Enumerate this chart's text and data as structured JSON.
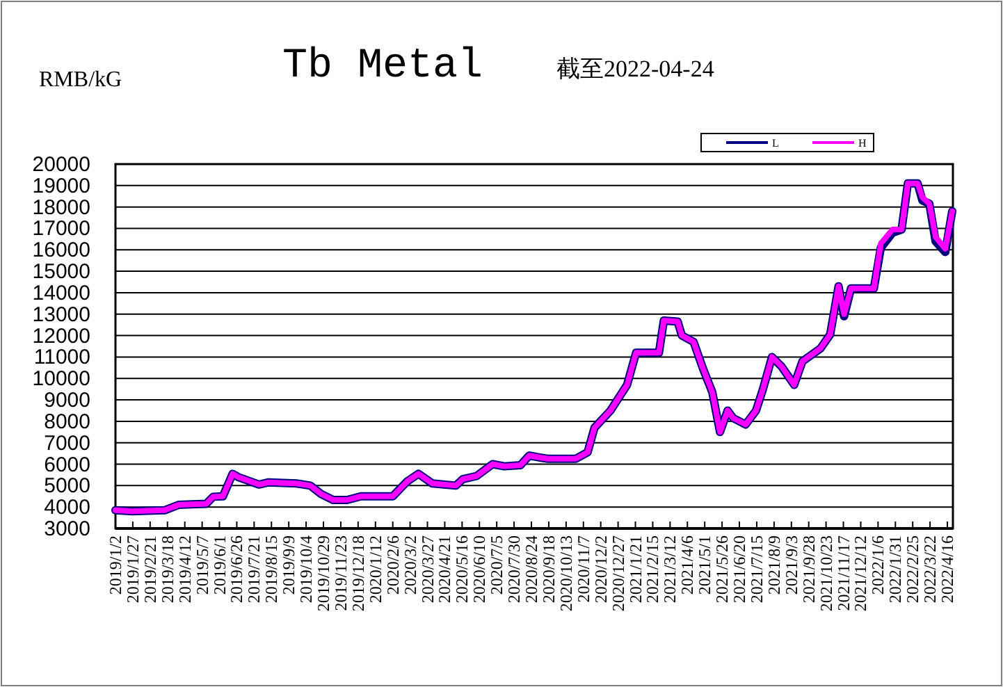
{
  "chart_data": {
    "type": "line",
    "title": "Tb Metal",
    "ylabel": "RMB/kG",
    "annotations": [
      "截至2022-04-24"
    ],
    "x": [
      "2019-01-02",
      "2019-01-26",
      "2019-03-14",
      "2019-04-03",
      "2019-05-13",
      "2019-05-23",
      "2019-06-06",
      "2019-06-20",
      "2019-06-28",
      "2019-07-28",
      "2019-08-11",
      "2019-09-20",
      "2019-10-10",
      "2019-10-26",
      "2019-11-12",
      "2019-12-02",
      "2019-12-22",
      "2020-02-06",
      "2020-02-27",
      "2020-03-14",
      "2020-04-03",
      "2020-05-07",
      "2020-05-17",
      "2020-06-06",
      "2020-06-29",
      "2020-07-16",
      "2020-08-08",
      "2020-08-21",
      "2020-09-07",
      "2020-09-17",
      "2020-10-27",
      "2020-11-13",
      "2020-11-23",
      "2020-12-16",
      "2021-01-09",
      "2021-01-22",
      "2021-02-24",
      "2021-03-03",
      "2021-03-23",
      "2021-03-29",
      "2021-04-15",
      "2021-04-28",
      "2021-05-12",
      "2021-05-23",
      "2021-06-03",
      "2021-06-11",
      "2021-06-29",
      "2021-07-14",
      "2021-07-24",
      "2021-08-06",
      "2021-08-20",
      "2021-09-07",
      "2021-09-19",
      "2021-10-15",
      "2021-10-29",
      "2021-11-10",
      "2021-11-18",
      "2021-11-28",
      "2021-12-31",
      "2022-01-10",
      "2022-01-27",
      "2022-02-09",
      "2022-02-18",
      "2022-03-04",
      "2022-03-11",
      "2022-03-21",
      "2022-03-30",
      "2022-04-13",
      "2022-04-23"
    ],
    "series": [
      {
        "name": "L",
        "color": "#000080",
        "values": [
          3850,
          3800,
          3850,
          4100,
          4150,
          4480,
          4500,
          5550,
          5400,
          5050,
          5150,
          5100,
          5000,
          4600,
          4330,
          4330,
          4500,
          4500,
          5200,
          5550,
          5100,
          5000,
          5300,
          5450,
          6000,
          5900,
          5950,
          6400,
          6300,
          6250,
          6250,
          6550,
          7700,
          8500,
          9700,
          11200,
          11200,
          12700,
          12650,
          12000,
          11700,
          10500,
          9350,
          7500,
          8500,
          8150,
          7850,
          8500,
          9500,
          11000,
          10550,
          9700,
          10800,
          11400,
          12050,
          14300,
          12900,
          14200,
          14200,
          16100,
          16800,
          16950,
          19100,
          19100,
          18300,
          18150,
          16400,
          15900,
          17800
        ]
      },
      {
        "name": "H",
        "color": "#ff00ff",
        "values": [
          3850,
          3800,
          3850,
          4100,
          4150,
          4480,
          4500,
          5550,
          5400,
          5050,
          5150,
          5100,
          5000,
          4600,
          4330,
          4330,
          4500,
          4500,
          5200,
          5550,
          5100,
          5000,
          5300,
          5450,
          6000,
          5900,
          5950,
          6400,
          6300,
          6250,
          6250,
          6550,
          7700,
          8500,
          9700,
          11200,
          11200,
          12700,
          12650,
          12000,
          11700,
          10500,
          9350,
          7500,
          8500,
          8150,
          7850,
          8500,
          9500,
          11000,
          10550,
          9700,
          10800,
          11400,
          12050,
          14300,
          13000,
          14200,
          14200,
          16300,
          16950,
          16950,
          19100,
          19100,
          18450,
          18150,
          16600,
          16050,
          17800
        ]
      }
    ],
    "xlim": [
      "2019-01-02",
      "2022-04-24"
    ],
    "xticks": [
      {
        "value": "2019-01-02",
        "label": "2019/1/2"
      },
      {
        "value": "2019-01-27",
        "label": "2019/1/27"
      },
      {
        "value": "2019-02-21",
        "label": "2019/2/21"
      },
      {
        "value": "2019-03-18",
        "label": "2019/3/18"
      },
      {
        "value": "2019-04-12",
        "label": "2019/4/12"
      },
      {
        "value": "2019-05-07",
        "label": "2019/5/7"
      },
      {
        "value": "2019-06-01",
        "label": "2019/6/1"
      },
      {
        "value": "2019-06-26",
        "label": "2019/6/26"
      },
      {
        "value": "2019-07-21",
        "label": "2019/7/21"
      },
      {
        "value": "2019-08-15",
        "label": "2019/8/15"
      },
      {
        "value": "2019-09-09",
        "label": "2019/9/9"
      },
      {
        "value": "2019-10-04",
        "label": "2019/10/4"
      },
      {
        "value": "2019-10-29",
        "label": "2019/10/29"
      },
      {
        "value": "2019-11-23",
        "label": "2019/11/23"
      },
      {
        "value": "2019-12-18",
        "label": "2019/12/18"
      },
      {
        "value": "2020-01-12",
        "label": "2020/1/12"
      },
      {
        "value": "2020-02-06",
        "label": "2020/2/6"
      },
      {
        "value": "2020-03-02",
        "label": "2020/3/2"
      },
      {
        "value": "2020-03-27",
        "label": "2020/3/27"
      },
      {
        "value": "2020-04-21",
        "label": "2020/4/21"
      },
      {
        "value": "2020-05-16",
        "label": "2020/5/16"
      },
      {
        "value": "2020-06-10",
        "label": "2020/6/10"
      },
      {
        "value": "2020-07-05",
        "label": "2020/7/5"
      },
      {
        "value": "2020-07-30",
        "label": "2020/7/30"
      },
      {
        "value": "2020-08-24",
        "label": "2020/8/24"
      },
      {
        "value": "2020-09-18",
        "label": "2020/9/18"
      },
      {
        "value": "2020-10-13",
        "label": "2020/10/13"
      },
      {
        "value": "2020-11-07",
        "label": "2020/11/7"
      },
      {
        "value": "2020-12-02",
        "label": "2020/12/2"
      },
      {
        "value": "2020-12-27",
        "label": "2020/12/27"
      },
      {
        "value": "2021-01-21",
        "label": "2021/1/21"
      },
      {
        "value": "2021-02-15",
        "label": "2021/2/15"
      },
      {
        "value": "2021-03-12",
        "label": "2021/3/12"
      },
      {
        "value": "2021-04-06",
        "label": "2021/4/6"
      },
      {
        "value": "2021-05-01",
        "label": "2021/5/1"
      },
      {
        "value": "2021-05-26",
        "label": "2021/5/26"
      },
      {
        "value": "2021-06-20",
        "label": "2021/6/20"
      },
      {
        "value": "2021-07-15",
        "label": "2021/7/15"
      },
      {
        "value": "2021-08-09",
        "label": "2021/8/9"
      },
      {
        "value": "2021-09-03",
        "label": "2021/9/3"
      },
      {
        "value": "2021-09-28",
        "label": "2021/9/28"
      },
      {
        "value": "2021-10-23",
        "label": "2021/10/23"
      },
      {
        "value": "2021-11-17",
        "label": "2021/11/17"
      },
      {
        "value": "2021-12-12",
        "label": "2021/12/12"
      },
      {
        "value": "2022-01-06",
        "label": "2022/1/6"
      },
      {
        "value": "2022-01-31",
        "label": "2022/1/31"
      },
      {
        "value": "2022-02-25",
        "label": "2022/2/25"
      },
      {
        "value": "2022-03-22",
        "label": "2022/3/22"
      },
      {
        "value": "2022-04-16",
        "label": "2022/4/16"
      }
    ],
    "ylim": [
      3000,
      20000
    ],
    "yticks": [
      3000,
      4000,
      5000,
      6000,
      7000,
      8000,
      9000,
      10000,
      11000,
      12000,
      13000,
      14000,
      15000,
      16000,
      17000,
      18000,
      19000,
      20000
    ],
    "grid": "y",
    "legend": "top right"
  }
}
